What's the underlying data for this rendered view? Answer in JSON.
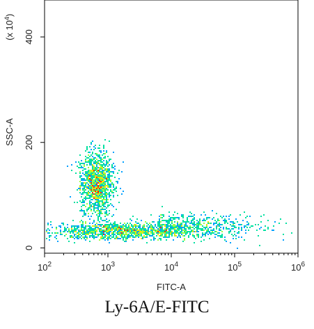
{
  "chart_data": {
    "type": "scatter",
    "title": "",
    "xlabel": "FITC-A",
    "ylabel": "SSC-A",
    "y_multiplier_label": "(x 10",
    "y_multiplier_exp": "4",
    "y_multiplier_close": ")",
    "x_scale": "log",
    "xlim": [
      100,
      1000000
    ],
    "ylim": [
      -10,
      470
    ],
    "x_ticks": [
      {
        "value": 100,
        "base": "10",
        "exp": "2"
      },
      {
        "value": 1000,
        "base": "10",
        "exp": "3"
      },
      {
        "value": 10000,
        "base": "10",
        "exp": "4"
      },
      {
        "value": 100000,
        "base": "10",
        "exp": "5"
      },
      {
        "value": 1000000,
        "base": "10",
        "exp": "6"
      }
    ],
    "y_ticks": [
      0,
      200,
      400
    ],
    "grid": false,
    "colormap": [
      "#0000dd",
      "#00a0ff",
      "#00e0a0",
      "#9bff40",
      "#ffe000",
      "#ff3000"
    ],
    "populations": [
      {
        "name": "main",
        "x_log_center": 2.82,
        "x_log_sd": 0.13,
        "y_center": 120,
        "y_sd": 30,
        "weight": 0.42
      },
      {
        "name": "low-ssc",
        "x_log_center": 3.2,
        "x_log_sd": 0.55,
        "y_center": 32,
        "y_sd": 8,
        "weight": 0.4
      },
      {
        "name": "tail",
        "x_log_center": 4.4,
        "x_log_sd": 0.5,
        "y_center": 40,
        "y_sd": 12,
        "weight": 0.18
      }
    ]
  },
  "caption": "Ly-6A/E-FITC"
}
